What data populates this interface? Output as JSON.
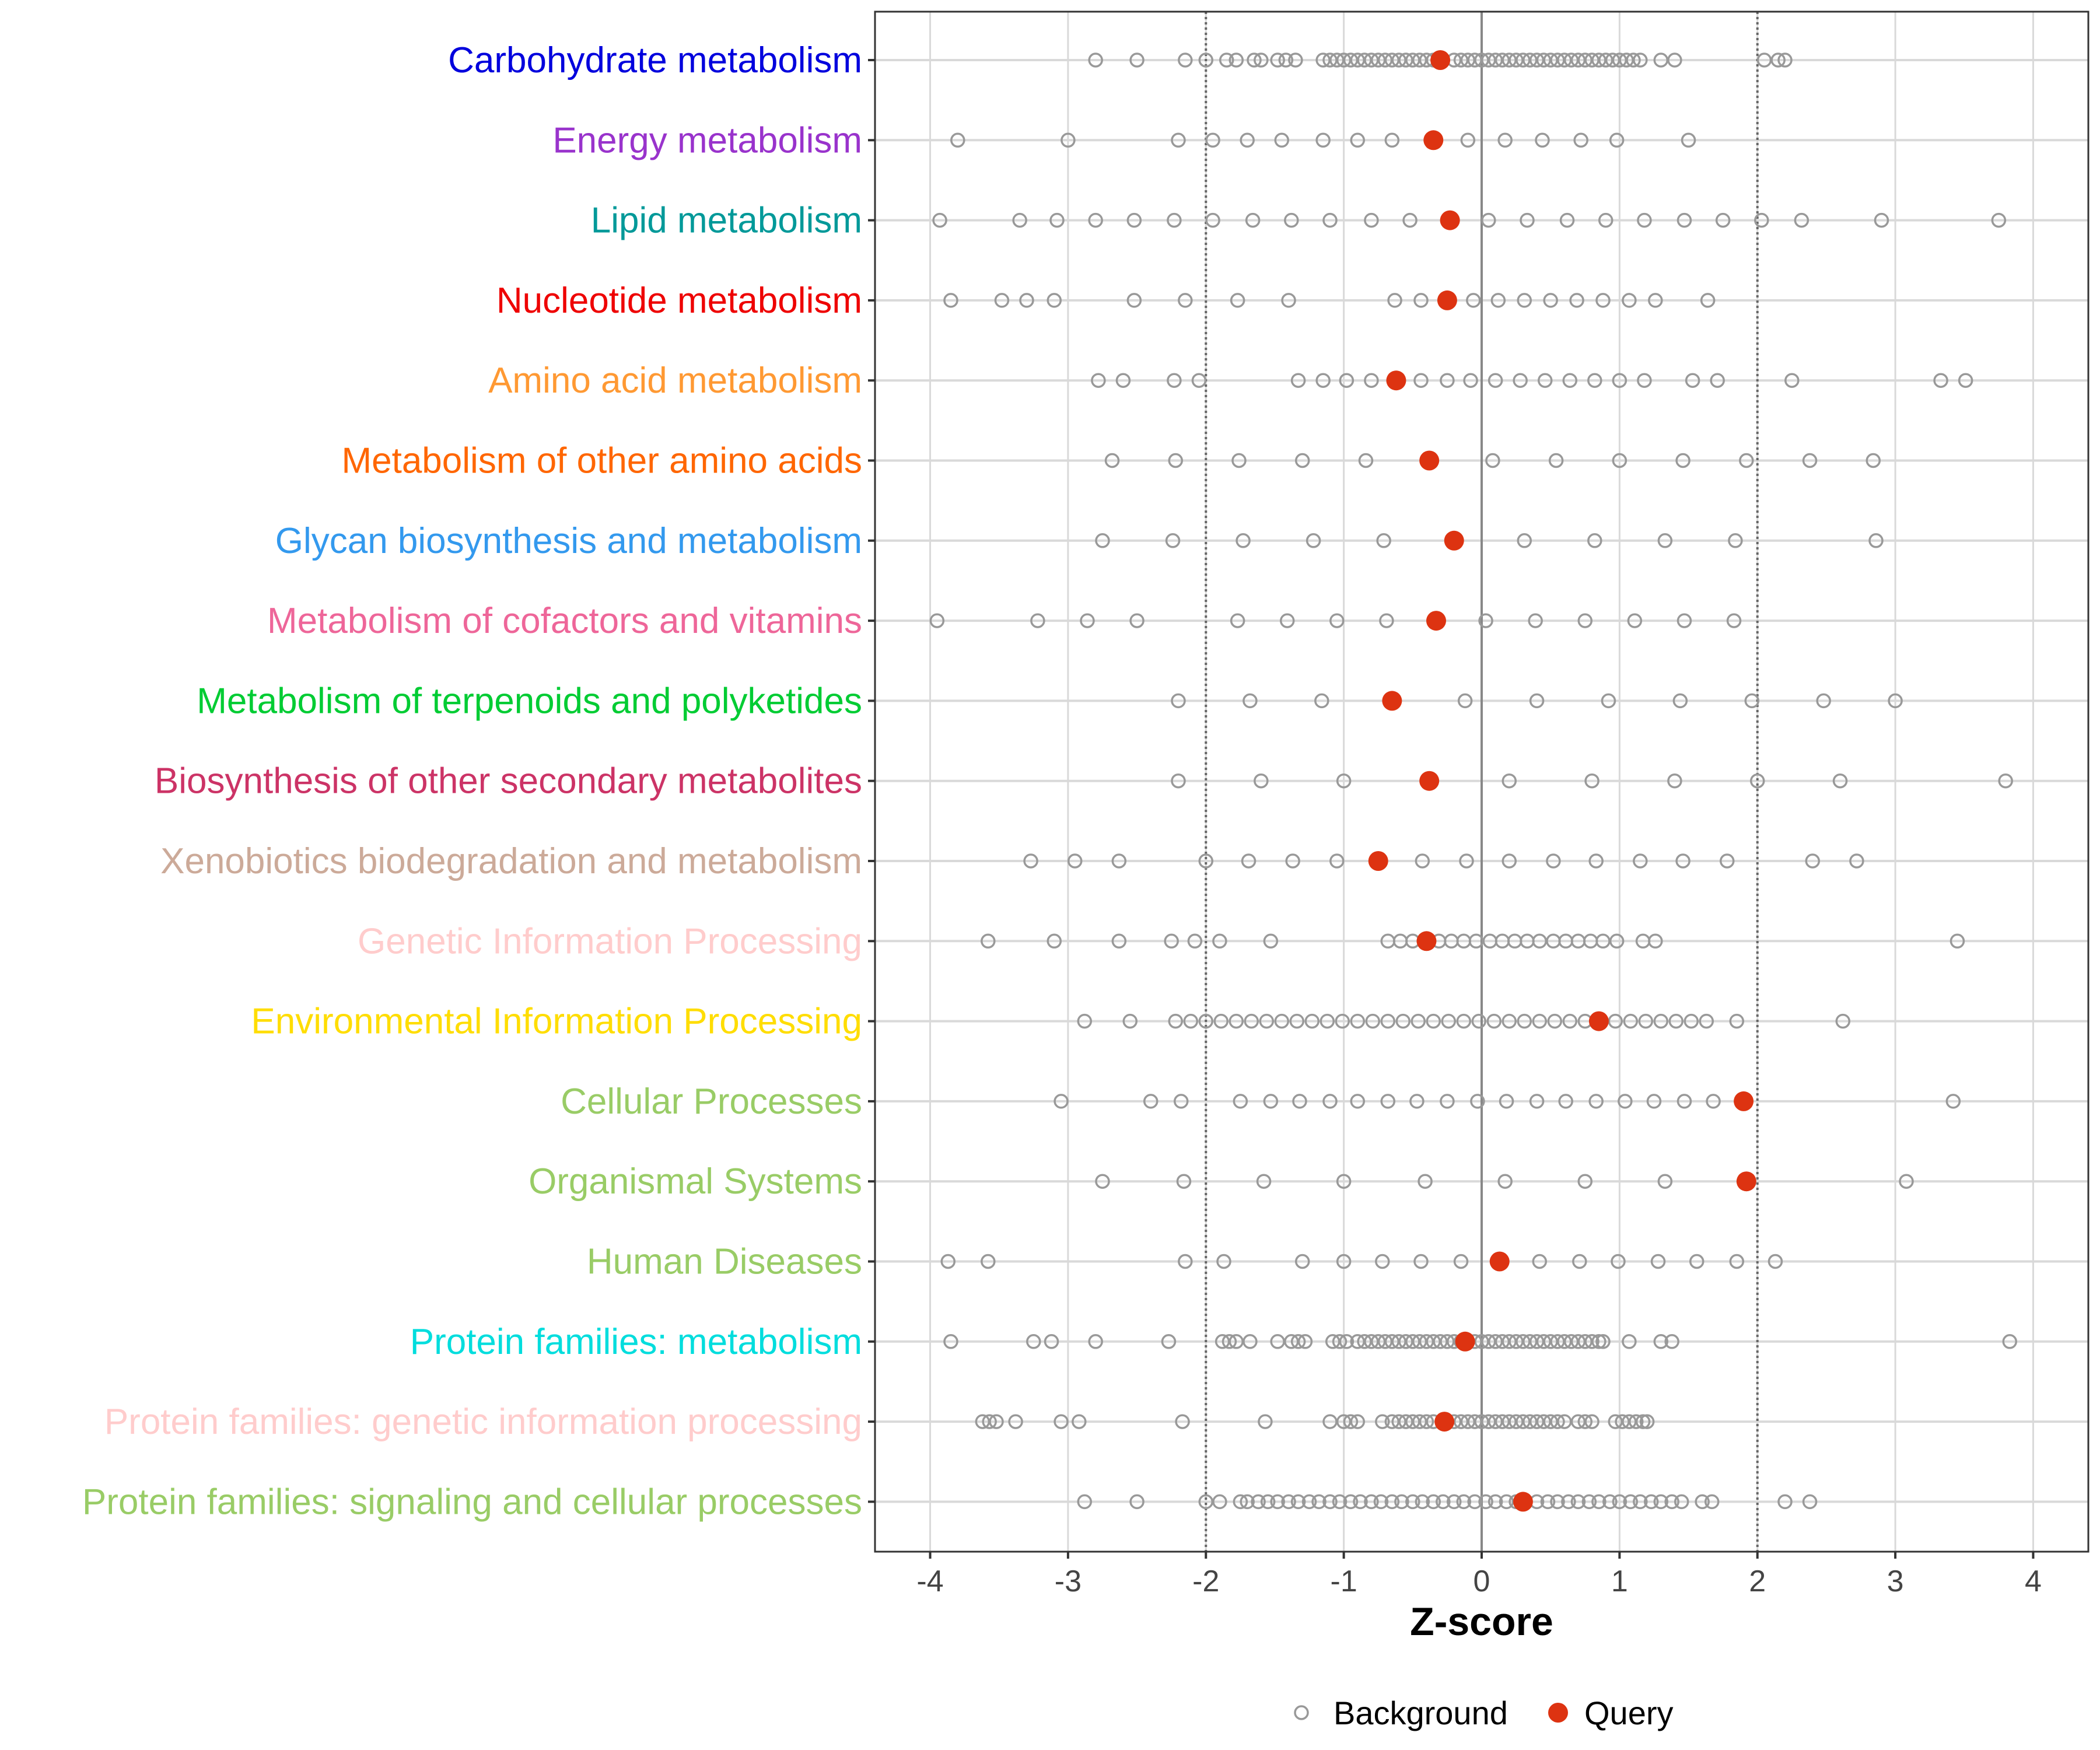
{
  "chart_data": {
    "type": "scatter",
    "xlabel": "Z-score",
    "ylabel": "",
    "xlim": [
      -4.4,
      4.4
    ],
    "xticks": [
      -4,
      -3,
      -2,
      -1,
      0,
      1,
      2,
      3,
      4
    ],
    "xtick_labels": [
      "-4",
      "-3",
      "-2",
      "-1",
      "0",
      "1",
      "2",
      "3",
      "4"
    ],
    "threshold_lines": [
      -2,
      2
    ],
    "zero_line": 0,
    "legend": {
      "position": "bottom",
      "background_label": "Background",
      "query_label": "Query"
    },
    "colors": {
      "background": "#999999",
      "query": "#DD3311",
      "grid": "#D9D9D9",
      "threshold": "#666666"
    },
    "categories": [
      {
        "name": "Carbohydrate metabolism",
        "color": "#0000DD",
        "query": -0.3,
        "background": [
          -2.8,
          -2.5,
          -2.15,
          -2.0,
          -1.85,
          -1.78,
          -1.65,
          -1.6,
          -1.48,
          -1.42,
          -1.35,
          -1.15,
          -1.1,
          -1.05,
          -1.0,
          -0.95,
          -0.9,
          -0.85,
          -0.8,
          -0.75,
          -0.7,
          -0.65,
          -0.6,
          -0.55,
          -0.5,
          -0.45,
          -0.4,
          -0.35,
          -0.2,
          -0.15,
          -0.1,
          -0.05,
          0.0,
          0.05,
          0.1,
          0.15,
          0.2,
          0.25,
          0.3,
          0.35,
          0.4,
          0.45,
          0.5,
          0.55,
          0.6,
          0.65,
          0.7,
          0.75,
          0.8,
          0.85,
          0.9,
          0.95,
          1.0,
          1.05,
          1.1,
          1.15,
          1.3,
          1.4,
          2.05,
          2.15,
          2.2
        ]
      },
      {
        "name": "Energy metabolism",
        "color": "#9933CC",
        "query": -0.35,
        "background": [
          -3.8,
          -3.0,
          -2.2,
          -1.95,
          -1.7,
          -1.45,
          -1.15,
          -0.9,
          -0.65,
          -0.1,
          0.17,
          0.44,
          0.72,
          0.98,
          1.5
        ]
      },
      {
        "name": "Lipid metabolism",
        "color": "#009999",
        "query": -0.23,
        "background": [
          -3.93,
          -3.35,
          -3.08,
          -2.8,
          -2.52,
          -2.23,
          -1.95,
          -1.66,
          -1.38,
          -1.1,
          -0.8,
          -0.52,
          0.05,
          0.33,
          0.62,
          0.9,
          1.18,
          1.47,
          1.75,
          2.03,
          2.32,
          2.9,
          3.75
        ]
      },
      {
        "name": "Nucleotide metabolism",
        "color": "#EE0000",
        "query": -0.25,
        "background": [
          -3.85,
          -3.48,
          -3.3,
          -3.1,
          -2.52,
          -2.15,
          -1.77,
          -1.4,
          -0.63,
          -0.44,
          -0.06,
          0.12,
          0.31,
          0.5,
          0.69,
          0.88,
          1.07,
          1.26,
          1.64
        ]
      },
      {
        "name": "Amino acid metabolism",
        "color": "#FF9933",
        "query": -0.62,
        "background": [
          -2.78,
          -2.6,
          -2.23,
          -2.05,
          -1.33,
          -1.15,
          -0.98,
          -0.8,
          -0.44,
          -0.25,
          -0.08,
          0.1,
          0.28,
          0.46,
          0.64,
          0.82,
          1.0,
          1.18,
          1.53,
          1.71,
          2.25,
          3.33,
          3.51
        ]
      },
      {
        "name": "Metabolism of other amino acids",
        "color": "#FF6600",
        "query": -0.38,
        "background": [
          -2.68,
          -2.22,
          -1.76,
          -1.3,
          -0.84,
          0.08,
          0.54,
          1.0,
          1.46,
          1.92,
          2.38,
          2.84
        ]
      },
      {
        "name": "Glycan biosynthesis and metabolism",
        "color": "#3399EE",
        "query": -0.2,
        "background": [
          -2.75,
          -2.24,
          -1.73,
          -1.22,
          -0.71,
          0.31,
          0.82,
          1.33,
          1.84,
          2.86
        ]
      },
      {
        "name": "Metabolism of cofactors and vitamins",
        "color": "#EE6699",
        "query": -0.33,
        "background": [
          -3.95,
          -3.22,
          -2.86,
          -2.5,
          -1.77,
          -1.41,
          -1.05,
          -0.69,
          0.03,
          0.39,
          0.75,
          1.11,
          1.47,
          1.83
        ]
      },
      {
        "name": "Metabolism of terpenoids and polyketides",
        "color": "#00CC33",
        "query": -0.65,
        "background": [
          -2.2,
          -1.68,
          -1.16,
          -0.12,
          0.4,
          0.92,
          1.44,
          1.96,
          2.48,
          3.0
        ]
      },
      {
        "name": "Biosynthesis of other secondary metabolites",
        "color": "#CC3366",
        "query": -0.38,
        "background": [
          -2.2,
          -1.6,
          -1.0,
          0.2,
          0.8,
          1.4,
          2.0,
          2.6,
          3.8
        ]
      },
      {
        "name": "Xenobiotics biodegradation and metabolism",
        "color": "#CCAA99",
        "query": -0.75,
        "background": [
          -3.27,
          -2.95,
          -2.63,
          -2.0,
          -1.69,
          -1.37,
          -1.05,
          -0.43,
          -0.11,
          0.2,
          0.52,
          0.83,
          1.15,
          1.46,
          1.78,
          2.4,
          2.72
        ]
      },
      {
        "name": "Genetic Information Processing",
        "color": "#FFCCCC",
        "query": -0.4,
        "background": [
          -3.58,
          -3.1,
          -2.63,
          -2.25,
          -2.08,
          -1.9,
          -1.53,
          -0.68,
          -0.59,
          -0.5,
          -0.31,
          -0.22,
          -0.13,
          -0.04,
          0.06,
          0.15,
          0.24,
          0.33,
          0.42,
          0.52,
          0.61,
          0.7,
          0.79,
          0.88,
          0.98,
          1.17,
          1.26,
          3.45
        ]
      },
      {
        "name": "Environmental Information Processing",
        "color": "#FFDD00",
        "query": 0.85,
        "background": [
          -2.88,
          -2.55,
          -2.22,
          -2.11,
          -2.0,
          -1.89,
          -1.78,
          -1.67,
          -1.56,
          -1.45,
          -1.34,
          -1.23,
          -1.12,
          -1.01,
          -0.9,
          -0.79,
          -0.68,
          -0.57,
          -0.46,
          -0.35,
          -0.24,
          -0.13,
          -0.02,
          0.09,
          0.2,
          0.31,
          0.42,
          0.53,
          0.64,
          0.75,
          0.97,
          1.08,
          1.19,
          1.3,
          1.41,
          1.52,
          1.63,
          1.85,
          2.62
        ]
      },
      {
        "name": "Cellular Processes",
        "color": "#99CC66",
        "query": 1.9,
        "background": [
          -3.05,
          -2.4,
          -2.18,
          -1.75,
          -1.53,
          -1.32,
          -1.1,
          -0.9,
          -0.68,
          -0.47,
          -0.25,
          -0.03,
          0.18,
          0.4,
          0.61,
          0.83,
          1.04,
          1.25,
          1.47,
          1.68,
          3.42
        ]
      },
      {
        "name": "Organismal Systems",
        "color": "#99CC66",
        "query": 1.92,
        "background": [
          -2.75,
          -2.16,
          -1.58,
          -1.0,
          -0.41,
          0.17,
          0.75,
          1.33,
          3.08
        ]
      },
      {
        "name": "Human Diseases",
        "color": "#99CC66",
        "query": 0.13,
        "background": [
          -3.87,
          -3.58,
          -2.15,
          -1.87,
          -1.3,
          -1.0,
          -0.72,
          -0.44,
          -0.15,
          0.42,
          0.71,
          0.99,
          1.28,
          1.56,
          1.85,
          2.13
        ]
      },
      {
        "name": "Protein families: metabolism",
        "color": "#00DDDD",
        "query": -0.12,
        "background": [
          -3.85,
          -3.25,
          -3.12,
          -2.8,
          -2.27,
          -1.88,
          -1.83,
          -1.78,
          -1.68,
          -1.48,
          -1.38,
          -1.33,
          -1.28,
          -1.08,
          -1.03,
          -0.98,
          -0.9,
          -0.85,
          -0.8,
          -0.75,
          -0.7,
          -0.65,
          -0.6,
          -0.55,
          -0.5,
          -0.45,
          -0.4,
          -0.35,
          -0.3,
          -0.25,
          -0.2,
          -0.15,
          -0.05,
          0.0,
          0.05,
          0.1,
          0.15,
          0.2,
          0.25,
          0.3,
          0.35,
          0.4,
          0.45,
          0.5,
          0.55,
          0.6,
          0.65,
          0.7,
          0.75,
          0.8,
          0.85,
          0.88,
          1.07,
          1.3,
          1.38,
          3.83
        ]
      },
      {
        "name": "Protein families: genetic information processing",
        "color": "#FFCCCC",
        "query": -0.27,
        "background": [
          -3.62,
          -3.57,
          -3.52,
          -3.38,
          -3.05,
          -2.92,
          -2.17,
          -1.57,
          -1.1,
          -1.0,
          -0.95,
          -0.9,
          -0.72,
          -0.65,
          -0.6,
          -0.55,
          -0.5,
          -0.45,
          -0.4,
          -0.35,
          -0.2,
          -0.15,
          -0.1,
          -0.05,
          0.0,
          0.05,
          0.1,
          0.15,
          0.2,
          0.25,
          0.3,
          0.35,
          0.4,
          0.45,
          0.5,
          0.55,
          0.6,
          0.7,
          0.75,
          0.8,
          0.97,
          1.02,
          1.07,
          1.12,
          1.17,
          1.2
        ]
      },
      {
        "name": "Protein families: signaling and cellular processes",
        "color": "#99CC66",
        "query": 0.3,
        "background": [
          -2.88,
          -2.5,
          -2.0,
          -1.9,
          -1.75,
          -1.7,
          -1.62,
          -1.55,
          -1.48,
          -1.4,
          -1.33,
          -1.25,
          -1.18,
          -1.1,
          -1.03,
          -0.95,
          -0.88,
          -0.8,
          -0.73,
          -0.65,
          -0.58,
          -0.5,
          -0.43,
          -0.35,
          -0.28,
          -0.2,
          -0.13,
          -0.05,
          0.03,
          0.1,
          0.18,
          0.25,
          0.4,
          0.48,
          0.55,
          0.63,
          0.7,
          0.78,
          0.85,
          0.93,
          1.0,
          1.08,
          1.15,
          1.23,
          1.3,
          1.38,
          1.45,
          1.6,
          1.67,
          2.2,
          2.38
        ]
      }
    ]
  }
}
